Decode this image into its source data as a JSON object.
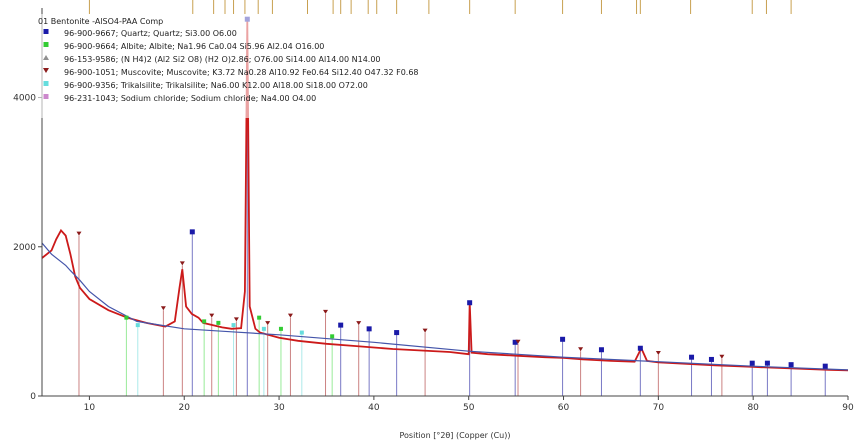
{
  "chart_data": {
    "type": "line",
    "title": "01 Bentonite -AlSO4-PAA Comp",
    "xlabel": "Position [°2θ] (Copper (Cu))",
    "ylabel": "",
    "xlim": [
      5,
      90
    ],
    "ylim": [
      0,
      5200
    ],
    "x_ticks": [
      10,
      20,
      30,
      40,
      50,
      60,
      70,
      80,
      90
    ],
    "y_ticks": [
      0,
      2000,
      4000
    ],
    "grid": false,
    "legend_placement": "top-left",
    "legend": [
      {
        "label": "96-900-9667; Quartz; Quartz; Si3.00 O6.00",
        "color": "#1a1aa8",
        "marker": "square"
      },
      {
        "label": "96-900-9664; Albite; Albite; Na1.96 Ca0.04 Si5.96 Al2.04 O16.00",
        "color": "#33cc33",
        "marker": "square"
      },
      {
        "label": "96-153-9586; (N H4)2 (Al2 Si2 O8) (H2 O)2.86; O76.00 Si14.00 Al14.00 N14.00",
        "color": "#909090",
        "marker": "triangle"
      },
      {
        "label": "96-900-1051; Muscovite; Muscovite; K3.72 Na0.28 Al10.92 Fe0.64 Si12.40 O47.32 F0.68",
        "color": "#8b1a1a",
        "marker": "triangle-down"
      },
      {
        "label": "96-900-9356; Trikalsilite; Trikalsilite; Na6.00 K12.00 Al18.00 Si18.00 O72.00",
        "color": "#66dddd",
        "marker": "square"
      },
      {
        "label": "96-231-1043; Sodium chloride; Sodium chloride; Na4.00 O4.00",
        "color": "#cc88cc",
        "marker": "square"
      }
    ],
    "series": [
      {
        "name": "01 Bentonite -AlSO4-PAA Comp",
        "color": "#cc1a1a",
        "x": [
          5,
          6,
          6.5,
          7,
          7.5,
          8,
          8.5,
          9,
          10,
          12,
          14,
          16,
          18,
          19,
          19.5,
          19.8,
          20.2,
          20.8,
          21.5,
          22,
          23,
          24,
          25,
          26,
          26.4,
          26.65,
          26.9,
          27.5,
          28,
          30,
          32,
          35,
          38,
          40,
          42,
          45,
          48,
          50,
          50.1,
          50.3,
          52,
          55,
          58,
          60,
          62,
          65,
          67.5,
          68.2,
          68.8,
          70,
          73,
          76,
          80,
          84,
          88,
          90
        ],
        "y": [
          1850,
          1950,
          2100,
          2220,
          2150,
          1900,
          1600,
          1450,
          1300,
          1150,
          1050,
          980,
          930,
          1000,
          1450,
          1700,
          1200,
          1100,
          1050,
          980,
          950,
          920,
          900,
          910,
          1400,
          5050,
          1200,
          900,
          850,
          780,
          740,
          700,
          670,
          650,
          630,
          610,
          590,
          560,
          1250,
          580,
          560,
          540,
          520,
          510,
          490,
          470,
          460,
          640,
          470,
          450,
          430,
          410,
          390,
          370,
          350,
          345
        ]
      },
      {
        "name": "",
        "color": "#4455aa",
        "x": [
          5,
          6,
          7,
          7.5,
          8,
          9,
          10,
          12,
          15,
          20,
          25,
          30,
          40,
          50,
          60,
          70,
          80,
          90
        ],
        "y": [
          2050,
          1900,
          1800,
          1750,
          1680,
          1550,
          1400,
          1200,
          1000,
          900,
          860,
          820,
          720,
          600,
          520,
          460,
          400,
          350
        ]
      }
    ],
    "quartz_peaks": [
      {
        "x": 20.85,
        "y": 2200
      },
      {
        "x": 26.65,
        "y": 5050
      },
      {
        "x": 36.5,
        "y": 950
      },
      {
        "x": 39.5,
        "y": 900
      },
      {
        "x": 42.4,
        "y": 850
      },
      {
        "x": 50.1,
        "y": 1250
      },
      {
        "x": 54.9,
        "y": 720
      },
      {
        "x": 59.9,
        "y": 760
      },
      {
        "x": 64.0,
        "y": 620
      },
      {
        "x": 68.1,
        "y": 640
      },
      {
        "x": 73.5,
        "y": 520
      },
      {
        "x": 75.6,
        "y": 490
      },
      {
        "x": 79.9,
        "y": 440
      },
      {
        "x": 81.5,
        "y": 440
      },
      {
        "x": 84.0,
        "y": 420
      },
      {
        "x": 87.6,
        "y": 400
      }
    ],
    "muscovite_peaks": [
      {
        "x": 8.9,
        "y": 2150
      },
      {
        "x": 17.8,
        "y": 1150
      },
      {
        "x": 19.8,
        "y": 1750
      },
      {
        "x": 22.9,
        "y": 1050
      },
      {
        "x": 25.5,
        "y": 1000
      },
      {
        "x": 28.8,
        "y": 950
      },
      {
        "x": 31.2,
        "y": 1050
      },
      {
        "x": 34.9,
        "y": 1100
      },
      {
        "x": 38.4,
        "y": 950
      },
      {
        "x": 45.4,
        "y": 850
      },
      {
        "x": 55.2,
        "y": 700
      },
      {
        "x": 61.8,
        "y": 600
      },
      {
        "x": 70.0,
        "y": 550
      },
      {
        "x": 76.7,
        "y": 500
      }
    ],
    "albite_peaks": [
      {
        "x": 13.9,
        "y": 1050
      },
      {
        "x": 22.1,
        "y": 1000
      },
      {
        "x": 23.6,
        "y": 980
      },
      {
        "x": 27.9,
        "y": 1050
      },
      {
        "x": 30.2,
        "y": 900
      },
      {
        "x": 35.6,
        "y": 800
      }
    ],
    "trikalsilite_peaks": [
      {
        "x": 15.1,
        "y": 950
      },
      {
        "x": 25.2,
        "y": 950
      },
      {
        "x": 28.4,
        "y": 900
      },
      {
        "x": 32.4,
        "y": 850
      }
    ],
    "top_tick_positions": [
      10,
      20.9,
      23.1,
      24.3,
      25.2,
      26.4,
      27.8,
      29.3,
      33,
      35.7,
      36.5,
      37.6,
      39.4,
      40.3,
      42.4,
      45.8,
      50.1,
      54.9,
      59.9,
      64.0,
      67.7,
      68.1,
      73.4,
      79.9,
      81.4,
      84.0
    ]
  }
}
